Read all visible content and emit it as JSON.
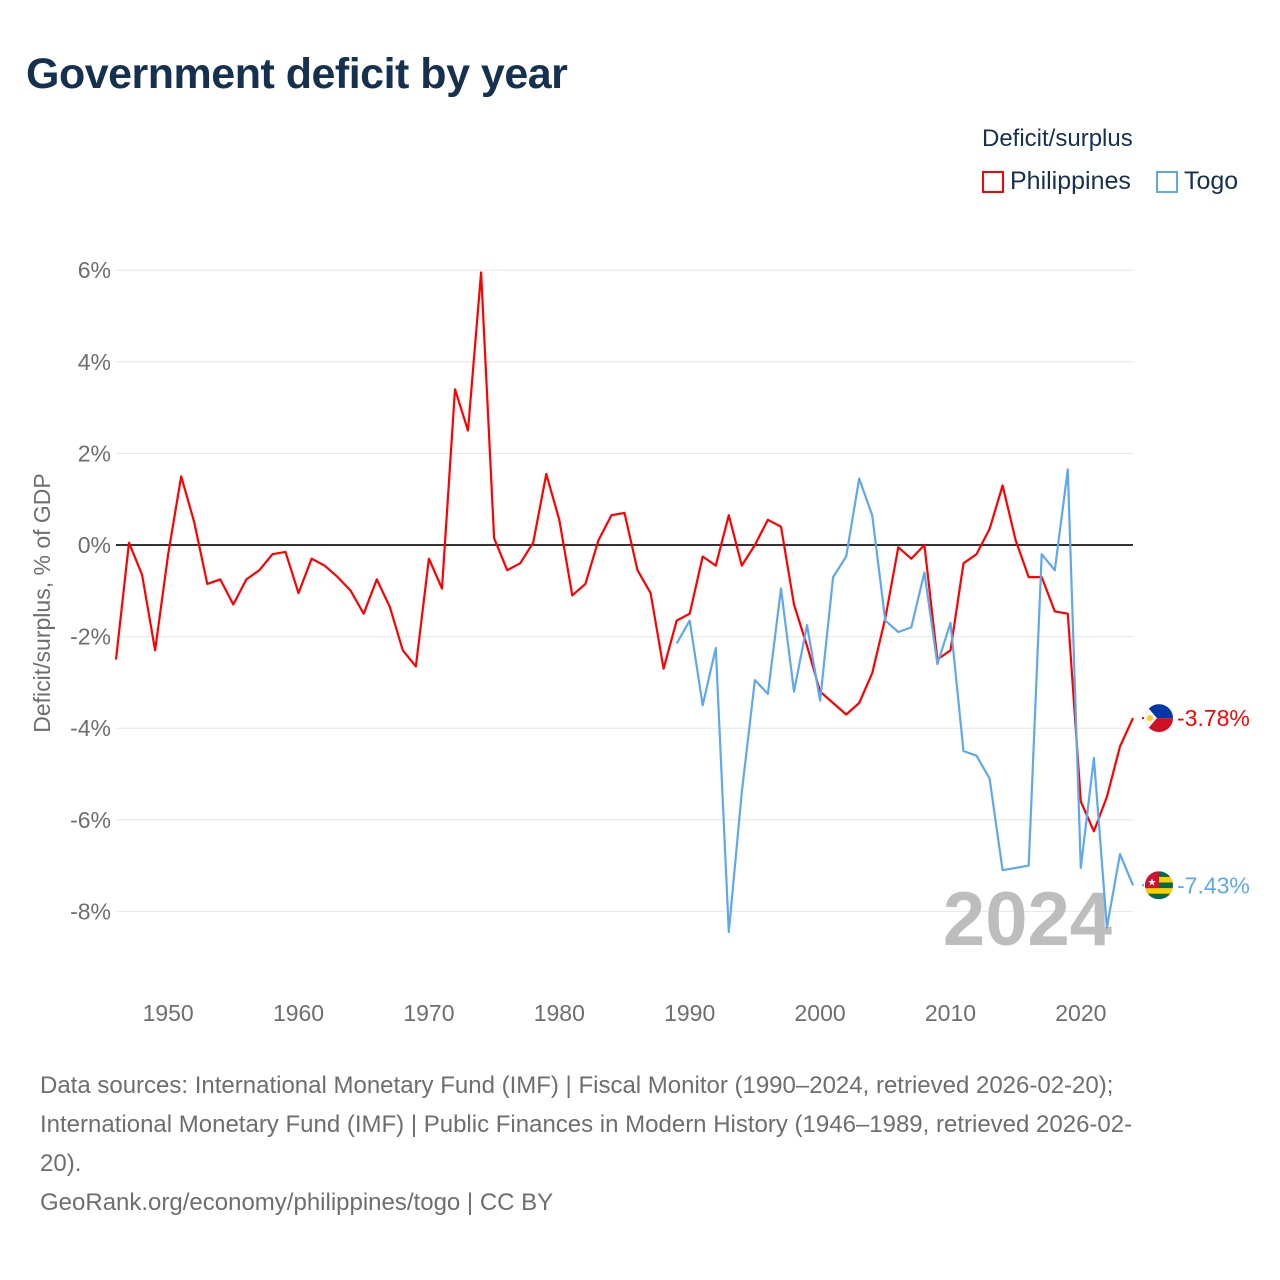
{
  "chart_data": {
    "type": "line",
    "title": "Government deficit by year",
    "ylabel": "Deficit/surplus, % of GDP",
    "xlabel": "",
    "legend_title": "Deficit/surplus",
    "legend_placement": "top-right",
    "xlim": [
      1946,
      2024
    ],
    "ylim": [
      -9,
      6.5
    ],
    "x_ticks": [
      1950,
      1960,
      1970,
      1980,
      1990,
      2000,
      2010,
      2020
    ],
    "x_tick_labels": [
      "1950",
      "1960",
      "1970",
      "1980",
      "1990",
      "2000",
      "2010",
      "2020"
    ],
    "y_ticks": [
      6,
      4,
      2,
      0,
      -2,
      -4,
      -6,
      -8
    ],
    "y_tick_labels": [
      "6%",
      "4%",
      "2%",
      "0%",
      "-2%",
      "-4%",
      "-6%",
      "-8%"
    ],
    "grid": true,
    "year_watermark": "2024",
    "series": [
      {
        "name": "Philippines",
        "color": "#ff0000",
        "end_label": "-3.78%",
        "flag": "philippines-flag",
        "start_year": 1946,
        "values": [
          -2.5,
          0.05,
          -0.65,
          -2.3,
          -0.2,
          1.5,
          0.5,
          -0.85,
          -0.75,
          -1.3,
          -0.75,
          -0.55,
          -0.2,
          -0.15,
          -1.05,
          -0.3,
          -0.45,
          -0.7,
          -1.0,
          -1.5,
          -0.75,
          -1.35,
          -2.3,
          -2.65,
          -0.3,
          -0.95,
          3.4,
          2.5,
          5.95,
          0.15,
          -0.55,
          -0.4,
          0.05,
          1.55,
          0.55,
          -1.1,
          -0.85,
          0.1,
          0.65,
          0.7,
          -0.55,
          -1.05,
          -2.7,
          -1.65,
          -1.5,
          -0.25,
          -0.45,
          0.65,
          -0.45,
          0.0,
          0.55,
          0.4,
          -1.3,
          -2.2,
          -3.2,
          -3.45,
          -3.7,
          -3.45,
          -2.8,
          -1.6,
          -0.05,
          -0.3,
          0.0,
          -2.5,
          -2.3,
          -0.4,
          -0.2,
          0.35,
          1.3,
          0.1,
          -0.7,
          -0.7,
          -1.45,
          -1.5,
          -5.6,
          -6.25,
          -5.5,
          -4.4,
          -3.78
        ]
      },
      {
        "name": "Togo",
        "color": "#5ea8ec",
        "end_label": "-7.43%",
        "flag": "togo-flag",
        "start_year": 1989,
        "values": [
          -2.15,
          -1.65,
          -3.5,
          -2.25,
          -8.45,
          -5.4,
          -2.95,
          -3.25,
          -0.95,
          -3.2,
          -1.75,
          -3.4,
          -0.7,
          -0.25,
          1.45,
          0.65,
          -1.65,
          -1.9,
          -1.8,
          -0.6,
          -2.6,
          -1.7,
          -4.5,
          -4.6,
          -5.1,
          -7.1,
          -7.05,
          -7.0,
          -0.2,
          -0.55,
          1.65,
          -7.05,
          -4.65,
          -8.35,
          -6.75,
          -7.43
        ]
      }
    ]
  },
  "footer": {
    "sources_line1": "Data sources: International Monetary Fund (IMF) | Fiscal Monitor (1990–2024, retrieved 2026-02-20);",
    "sources_line2": "International Monetary Fund (IMF) | Public Finances in Modern History (1946–1989, retrieved 2026-02-",
    "sources_line3": "20).",
    "attribution": "GeoRank.org/economy/philippines/togo | CC BY"
  }
}
